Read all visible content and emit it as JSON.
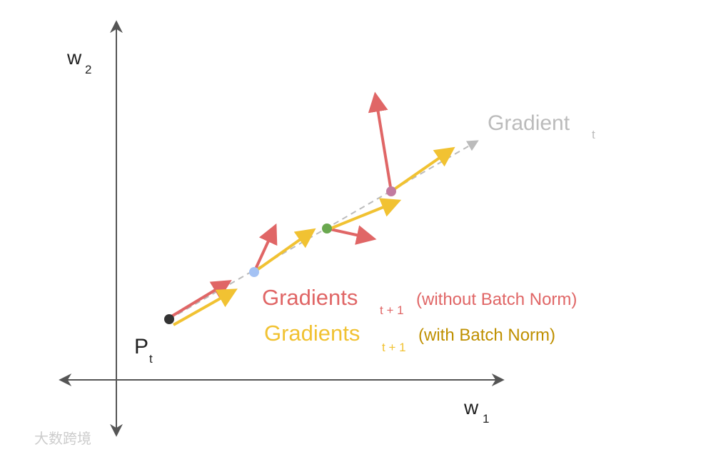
{
  "axes": {
    "y_label": {
      "main": "w",
      "sub": "2"
    },
    "x_label": {
      "main": "w",
      "sub": "1"
    }
  },
  "start_point": {
    "main": "P",
    "sub": "t"
  },
  "gradient_label": {
    "main": "Gradient",
    "sub": "t"
  },
  "legend": [
    {
      "main": "Gradients",
      "sub": "t + 1",
      "note": "(without Batch Norm)"
    },
    {
      "main": "Gradients",
      "sub": "t + 1",
      "note": "(with Batch Norm)"
    }
  ],
  "watermark": "大数跨境"
}
